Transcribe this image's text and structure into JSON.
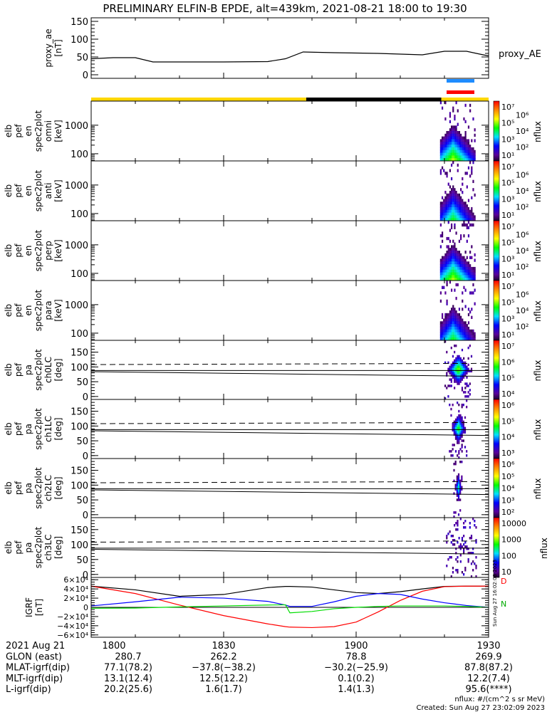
{
  "title": "PRELIMINARY ELFIN-B EPDE, alt=439km, 2021-08-21 18:00 to 19:30",
  "colors": {
    "sunlit": "#ffd700",
    "eclipse": "#000000",
    "bar_blue": "#1e8cff",
    "bar_red": "#ff0000"
  },
  "chart_data": [
    {
      "type": "line",
      "id": "proxy_ae",
      "ylabel_lines": [
        "proxy_ae",
        "[nT]"
      ],
      "legend": "proxy_AE",
      "ylim": [
        -10,
        160
      ],
      "yticks": [
        "0",
        "50",
        "100",
        "150"
      ],
      "ytick_values": [
        0,
        50,
        100,
        150
      ],
      "x_minutes": [
        0,
        5,
        10,
        14,
        20,
        30,
        40,
        44,
        48,
        55,
        65,
        75,
        80,
        85,
        88,
        90
      ],
      "y": [
        45,
        48,
        48,
        36,
        36,
        36,
        37,
        45,
        64,
        62,
        60,
        56,
        66,
        66,
        58,
        53
      ]
    },
    {
      "type": "heatmap",
      "id": "spec-omni",
      "ylabel_lines": [
        "elb",
        "pef",
        "en",
        "spec2plot",
        "omni",
        "[keV]"
      ],
      "yscale": "log",
      "ylim": [
        56,
        7000
      ],
      "yticks": [
        "100",
        "1000"
      ],
      "ytick_values": [
        100,
        1000
      ],
      "cbar": {
        "label": "nflux",
        "ticks": [
          "10¹",
          "10²",
          "10³",
          "10⁴",
          "10⁵",
          "10⁶",
          "10⁷"
        ],
        "range_log": [
          1,
          7
        ]
      },
      "active_minutes": [
        79,
        87
      ],
      "peak": 5
    },
    {
      "type": "heatmap",
      "id": "spec-anti",
      "ylabel_lines": [
        "elb",
        "pef",
        "en",
        "spec2plot",
        "anti",
        "[keV]"
      ],
      "yscale": "log",
      "ylim": [
        56,
        7000
      ],
      "yticks": [
        "100",
        "1000"
      ],
      "ytick_values": [
        100,
        1000
      ],
      "cbar": {
        "label": "nflux",
        "ticks": [
          "10¹",
          "10²",
          "10³",
          "10⁴",
          "10⁵",
          "10⁶",
          "10⁷"
        ],
        "range_log": [
          1,
          7
        ]
      },
      "active_minutes": [
        79,
        87
      ],
      "peak": 4.3
    },
    {
      "type": "heatmap",
      "id": "spec-perp",
      "ylabel_lines": [
        "elb",
        "pef",
        "en",
        "spec2plot",
        "perp",
        "[keV]"
      ],
      "yscale": "log",
      "ylim": [
        56,
        7000
      ],
      "yticks": [
        "100",
        "1000"
      ],
      "ytick_values": [
        100,
        1000
      ],
      "cbar": {
        "label": "nflux",
        "ticks": [
          "10¹",
          "10²",
          "10³",
          "10⁴",
          "10⁵",
          "10⁶",
          "10⁷"
        ],
        "range_log": [
          1,
          7
        ]
      },
      "active_minutes": [
        79,
        87
      ],
      "peak": 5
    },
    {
      "type": "heatmap",
      "id": "spec-para",
      "ylabel_lines": [
        "elb",
        "pef",
        "en",
        "spec2plot",
        "para",
        "[keV]"
      ],
      "yscale": "log",
      "ylim": [
        56,
        7000
      ],
      "yticks": [
        "100",
        "1000"
      ],
      "ytick_values": [
        100,
        1000
      ],
      "cbar": {
        "label": "nflux",
        "ticks": [
          "10¹",
          "10²",
          "10³",
          "10⁴",
          "10⁵",
          "10⁶",
          "10⁷"
        ],
        "range_log": [
          1,
          7
        ]
      },
      "active_minutes": [
        79,
        87
      ],
      "peak": 4.3
    },
    {
      "type": "heatmap",
      "id": "pa-ch0",
      "ylabel_lines": [
        "elb",
        "pef",
        "pa",
        "spec2plot",
        "ch0LC",
        "[deg]"
      ],
      "ylim": [
        -10,
        190
      ],
      "yticks": [
        "0",
        "50",
        "100",
        "150"
      ],
      "ytick_values": [
        0,
        50,
        100,
        150
      ],
      "cbar": {
        "label": "nflux",
        "ticks": [
          "10⁴",
          "10⁵",
          "10⁶",
          "10⁷"
        ],
        "range_log": [
          3.5,
          7.3
        ]
      },
      "active_minutes": [
        80,
        86
      ],
      "peak": 6
    },
    {
      "type": "heatmap",
      "id": "pa-ch1",
      "ylabel_lines": [
        "elb",
        "pef",
        "pa",
        "spec2plot",
        "ch1LC",
        "[deg]"
      ],
      "ylim": [
        -10,
        190
      ],
      "yticks": [
        "0",
        "50",
        "100",
        "150"
      ],
      "ytick_values": [
        0,
        50,
        100,
        150
      ],
      "cbar": {
        "label": "nflux",
        "ticks": [
          "10³",
          "10⁴",
          "10⁵",
          "10⁶"
        ],
        "range_log": [
          2.8,
          6.8
        ]
      },
      "active_minutes": [
        81,
        85
      ],
      "peak": 5.2
    },
    {
      "type": "heatmap",
      "id": "pa-ch2",
      "ylabel_lines": [
        "elb",
        "pef",
        "pa",
        "spec2plot",
        "ch2LC",
        "[deg]"
      ],
      "ylim": [
        -10,
        190
      ],
      "yticks": [
        "0",
        "50",
        "100",
        "150"
      ],
      "ytick_values": [
        0,
        50,
        100,
        150
      ],
      "cbar": {
        "label": "nflux",
        "ticks": [
          "10²",
          "10³",
          "10⁴",
          "10⁵",
          "10⁶"
        ],
        "range_log": [
          1.7,
          6.3
        ]
      },
      "active_minutes": [
        82,
        84
      ],
      "peak": 4
    },
    {
      "type": "heatmap",
      "id": "pa-ch3",
      "ylabel_lines": [
        "elb",
        "pef",
        "pa",
        "spec2plot",
        "ch3LC",
        "[deg]"
      ],
      "ylim": [
        -10,
        190
      ],
      "yticks": [
        "0",
        "50",
        "100",
        "150"
      ],
      "ytick_values": [
        0,
        50,
        100,
        150
      ],
      "cbar": {
        "label": "nflux",
        "ticks": [
          "10",
          "100",
          "1000",
          "10000"
        ],
        "range_log": [
          0.8,
          4.4
        ]
      },
      "active_minutes": [
        80,
        87
      ],
      "peak": 1.5
    },
    {
      "type": "line",
      "id": "igrf",
      "ylabel_lines": [
        "IGRF",
        "[nT]"
      ],
      "ylim": [
        -65000,
        65000
      ],
      "yticks": [
        "6×10⁴",
        "4×10⁴",
        "2×10⁴",
        "0",
        "−2×10⁴",
        "−4×10⁴",
        "−6×10⁴"
      ],
      "ytick_values": [
        60000,
        40000,
        20000,
        0,
        -20000,
        -40000,
        -60000
      ],
      "legend": [
        "D",
        "N"
      ],
      "x_minutes": [
        0,
        10,
        20,
        30,
        40,
        44,
        45,
        50,
        55,
        60,
        65,
        70,
        75,
        80,
        85,
        90
      ],
      "series": [
        {
          "name": "total",
          "color": "#000000",
          "y": [
            46000,
            38000,
            24000,
            28000,
            43000,
            45500,
            45500,
            44000,
            38000,
            32000,
            30000,
            34000,
            40000,
            45500,
            46000,
            46000
          ]
        },
        {
          "name": "red",
          "color": "#ff0000",
          "y": [
            46000,
            30000,
            5000,
            -18000,
            -36000,
            -42000,
            -43000,
            -44000,
            -42000,
            -32000,
            -10000,
            15000,
            35000,
            45000,
            46000,
            46000
          ]
        },
        {
          "name": "blue",
          "color": "#0000ff",
          "y": [
            3000,
            12000,
            22000,
            20000,
            13000,
            5000,
            2000,
            2000,
            12000,
            24000,
            30000,
            28000,
            18000,
            10000,
            4000,
            0
          ]
        },
        {
          "name": "green",
          "color": "#00dd00",
          "y": [
            -2000,
            -1500,
            1000,
            3000,
            5000,
            5500,
            -12000,
            -9000,
            -3000,
            0,
            2000,
            3000,
            3000,
            3000,
            2000,
            0
          ]
        }
      ]
    }
  ],
  "x_axis": {
    "tick_labels": [
      "1800",
      "1830",
      "1900",
      "1930"
    ],
    "tick_minutes": [
      0,
      30,
      60,
      90
    ]
  },
  "ephemeris": {
    "row_labels": [
      "2021 Aug 21",
      "GLON (east)",
      "MLAT-igrf(dip)",
      "MLT-igrf(dip)",
      "L-igrf(dip)"
    ],
    "columns": [
      [
        "1800",
        "280.7",
        "77.1(78.2)",
        "13.1(12.4)",
        "20.2(25.6)"
      ],
      [
        "1830",
        "262.2",
        "−37.8(−38.2)",
        "12.5(12.2)",
        "1.6(1.7)"
      ],
      [
        "1900",
        "78.8",
        "−30.2(−25.9)",
        "0.1(0.2)",
        "1.4(1.3)"
      ],
      [
        "1930",
        "269.9",
        "87.8(87.2)",
        "12.2(7.4)",
        "95.6(****)"
      ]
    ]
  },
  "footer": {
    "units": "nflux: #/(cm^2 s sr MeV)",
    "created": "Created: Sun Aug 27 23:02:09 2023",
    "side_stamp": "Sun Aug 27 16:02:08 2023"
  }
}
